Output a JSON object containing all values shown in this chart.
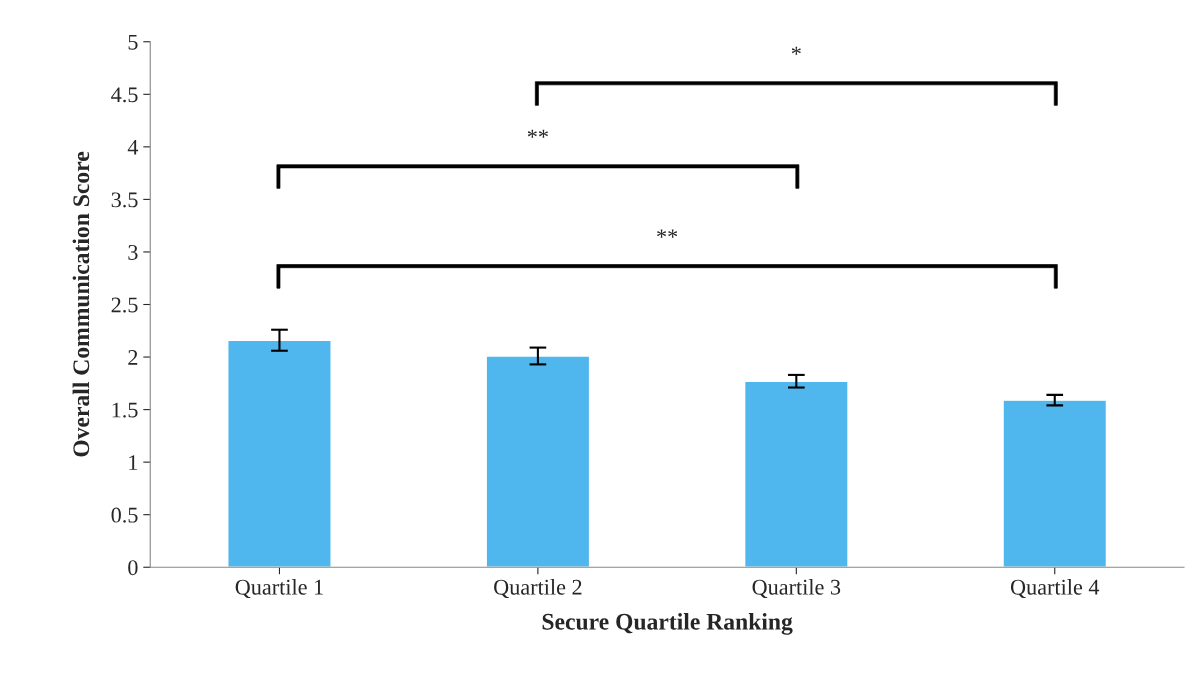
{
  "chart_data": {
    "type": "bar",
    "xlabel": "Secure Quartile Ranking",
    "ylabel": "Overall Communication Score",
    "categories": [
      "Quartile 1",
      "Quartile 2",
      "Quartile 3",
      "Quartile 4"
    ],
    "values": [
      2.16,
      2.01,
      1.77,
      1.59
    ],
    "errors": [
      0.1,
      0.08,
      0.06,
      0.05
    ],
    "color": "#4fb6ee",
    "ylim": [
      0,
      5
    ],
    "yticks": [
      0,
      0.5,
      1,
      1.5,
      2,
      2.5,
      3,
      3.5,
      4,
      4.5,
      5
    ],
    "grid": false,
    "annotations": [
      "*",
      "**",
      "**"
    ]
  }
}
